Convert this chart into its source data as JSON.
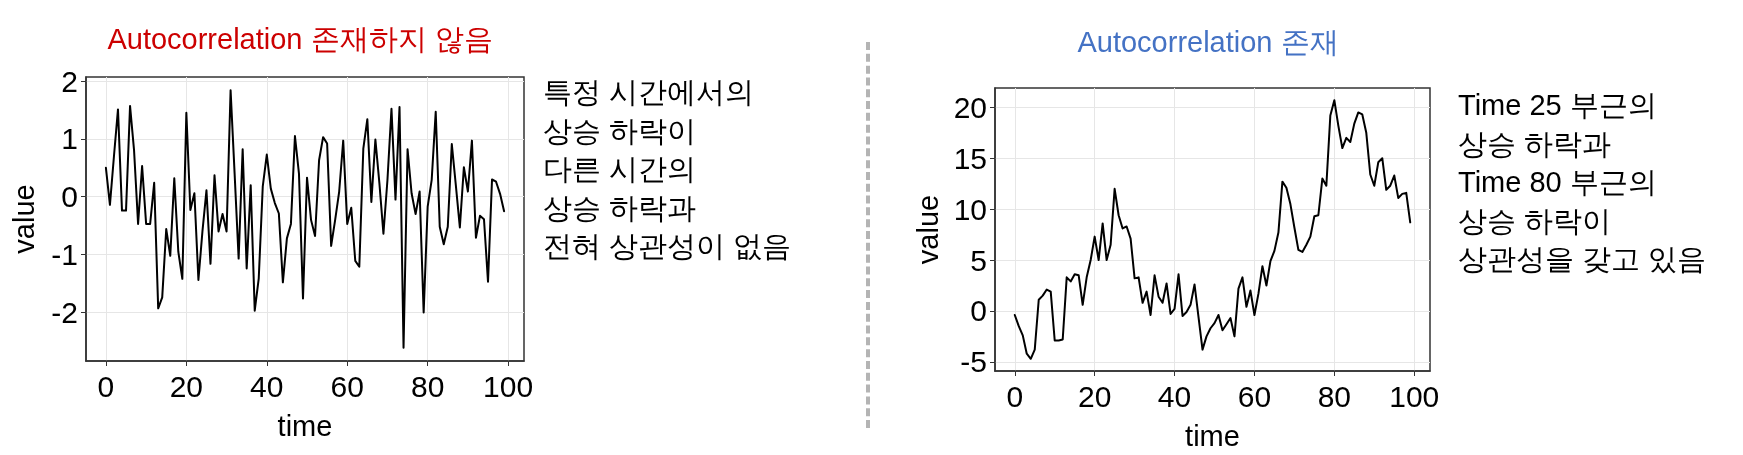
{
  "chart_data": [
    {
      "type": "line",
      "title": "Autocorrelation 존재하지 않음",
      "xlabel": "time",
      "ylabel": "value",
      "annotations": [
        "특정 시간에서의\n상승 하락이\n다른 시간의\n상승 하락과\n전혀 상관성이 없음"
      ],
      "x": [
        0,
        1,
        2,
        3,
        4,
        5,
        6,
        7,
        8,
        9,
        10,
        11,
        12,
        13,
        14,
        15,
        16,
        17,
        18,
        19,
        20,
        21,
        22,
        23,
        24,
        25,
        26,
        27,
        28,
        29,
        30,
        31,
        32,
        33,
        34,
        35,
        36,
        37,
        38,
        39,
        40,
        41,
        42,
        43,
        44,
        45,
        46,
        47,
        48,
        49,
        50,
        51,
        52,
        53,
        54,
        55,
        56,
        57,
        58,
        59,
        60,
        61,
        62,
        63,
        64,
        65,
        66,
        67,
        68,
        69,
        70,
        71,
        72,
        73,
        74,
        75,
        76,
        77,
        78,
        79,
        80,
        81,
        82,
        83,
        84,
        85,
        86,
        87,
        88,
        89,
        90,
        91,
        92,
        93,
        94,
        95,
        96,
        97,
        98,
        99
      ],
      "series": [
        {
          "color": "#000000",
          "values": [
            0.5,
            -0.14,
            0.7,
            1.51,
            -0.24,
            -0.24,
            1.57,
            0.8,
            -0.47,
            0.53,
            -0.47,
            -0.47,
            0.24,
            -1.93,
            -1.74,
            -0.56,
            -1.02,
            0.32,
            -0.95,
            -1.42,
            1.45,
            -0.23,
            0.06,
            -1.44,
            -0.6,
            0.11,
            -1.16,
            0.37,
            -0.6,
            -0.3,
            -0.6,
            1.84,
            0.4,
            -1.07,
            0.82,
            -1.24,
            0.2,
            -1.97,
            -1.41,
            0.18,
            0.73,
            0.14,
            -0.11,
            -0.29,
            -1.48,
            -0.72,
            -0.47,
            1.05,
            0.4,
            -1.76,
            0.33,
            -0.4,
            -0.68,
            0.63,
            1.03,
            0.92,
            -0.85,
            -0.4,
            0.09,
            0.97,
            -0.47,
            -0.19,
            -1.11,
            -1.21,
            0.83,
            1.34,
            -0.09,
            0.99,
            0.23,
            -0.64,
            0.29,
            1.52,
            -0.05,
            1.55,
            -2.61,
            0.82,
            0.06,
            -0.3,
            0.09,
            -2.0,
            -0.17,
            0.29,
            1.47,
            -0.52,
            -0.82,
            -0.52,
            0.91,
            0.2,
            -0.53,
            0.51,
            0.09,
            0.97,
            -0.71,
            -0.33,
            -0.39,
            -1.47,
            0.3,
            0.26,
            0.05,
            -0.25
          ]
        }
      ],
      "xlim": [
        -4.95,
        103.95
      ],
      "xticks": [
        0,
        20,
        40,
        60,
        80,
        100
      ],
      "ylim": [
        -2.84,
        2.07
      ],
      "yticks": [
        -2,
        -1,
        0,
        1,
        2
      ],
      "grid": true,
      "marker": "none",
      "line_style": "solid"
    },
    {
      "type": "line",
      "title": "Autocorrelation 존재",
      "xlabel": "time",
      "ylabel": "value",
      "annotations": [
        "Time 25 부근의\n상승 하락과\nTime 80 부근의\n상승 하락이\n상관성을 갖고 있음"
      ],
      "x": [
        0,
        1,
        2,
        3,
        4,
        5,
        6,
        7,
        8,
        9,
        10,
        11,
        12,
        13,
        14,
        15,
        16,
        17,
        18,
        19,
        20,
        21,
        22,
        23,
        24,
        25,
        26,
        27,
        28,
        29,
        30,
        31,
        32,
        33,
        34,
        35,
        36,
        37,
        38,
        39,
        40,
        41,
        42,
        43,
        44,
        45,
        46,
        47,
        48,
        49,
        50,
        51,
        52,
        53,
        54,
        55,
        56,
        57,
        58,
        59,
        60,
        61,
        62,
        63,
        64,
        65,
        66,
        67,
        68,
        69,
        70,
        71,
        72,
        73,
        74,
        75,
        76,
        77,
        78,
        79,
        80,
        81,
        82,
        83,
        84,
        85,
        86,
        87,
        88,
        89,
        90,
        91,
        92,
        93,
        94,
        95,
        96,
        97,
        98,
        99
      ],
      "series": [
        {
          "color": "#000000",
          "values": [
            -0.4,
            -1.5,
            -2.4,
            -4.2,
            -4.7,
            -3.8,
            1.1,
            1.5,
            2.1,
            1.9,
            -2.9,
            -2.9,
            -2.8,
            3.3,
            2.9,
            3.6,
            3.5,
            0.6,
            3.3,
            5.0,
            7.3,
            5.0,
            8.6,
            5.0,
            6.5,
            12.0,
            9.4,
            8.1,
            8.3,
            7.1,
            3.2,
            3.3,
            0.8,
            1.9,
            -0.4,
            3.5,
            1.4,
            0.8,
            2.7,
            -0.3,
            0.2,
            3.6,
            -0.5,
            -0.1,
            0.6,
            2.6,
            -0.6,
            -3.8,
            -2.5,
            -1.7,
            -1.2,
            -0.4,
            -1.9,
            -1.3,
            -0.7,
            -2.5,
            2.2,
            3.3,
            0.4,
            2.0,
            -0.4,
            1.7,
            4.4,
            2.5,
            4.9,
            5.9,
            7.7,
            12.7,
            12.1,
            10.5,
            8.2,
            6.0,
            5.8,
            6.5,
            7.3,
            9.3,
            9.4,
            13.0,
            12.3,
            19.2,
            20.7,
            18.2,
            16.0,
            17.0,
            16.6,
            18.4,
            19.5,
            19.3,
            17.5,
            13.4,
            12.3,
            14.6,
            15.0,
            11.9,
            12.3,
            13.3,
            11.1,
            11.5,
            11.6,
            8.7
          ]
        }
      ],
      "xlim": [
        -4.95,
        103.95
      ],
      "xticks": [
        0,
        20,
        40,
        60,
        80,
        100
      ],
      "ylim": [
        -5.9,
        21.9
      ],
      "yticks": [
        -5,
        0,
        5,
        10,
        15,
        20
      ],
      "grid": true,
      "marker": "none",
      "line_style": "solid"
    }
  ]
}
